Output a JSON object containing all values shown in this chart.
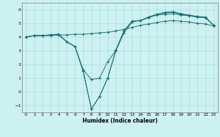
{
  "xlabel": "Humidex (Indice chaleur)",
  "background_color": "#cdf0f0",
  "line_color": "#1a7070",
  "grid_color": "#a8dede",
  "xlim": [
    -0.5,
    23.5
  ],
  "ylim": [
    -1.5,
    6.5
  ],
  "yticks": [
    -1,
    0,
    1,
    2,
    3,
    4,
    5,
    6
  ],
  "xticks": [
    0,
    1,
    2,
    3,
    4,
    5,
    6,
    7,
    8,
    9,
    10,
    11,
    12,
    13,
    14,
    15,
    16,
    17,
    18,
    19,
    20,
    21,
    22,
    23
  ],
  "line1_x": [
    0,
    1,
    2,
    3,
    4,
    5,
    6,
    7,
    8,
    9,
    10,
    11,
    12,
    13,
    14,
    15,
    16,
    17,
    18,
    19,
    20,
    21,
    22,
    23
  ],
  "line1_y": [
    4.0,
    4.1,
    4.1,
    4.1,
    4.15,
    4.15,
    4.2,
    4.2,
    4.25,
    4.3,
    4.35,
    4.45,
    4.55,
    4.7,
    4.85,
    4.95,
    5.05,
    5.15,
    5.2,
    5.15,
    5.1,
    5.0,
    4.95,
    4.8
  ],
  "line2_x": [
    0,
    1,
    2,
    3,
    4,
    5,
    6,
    7,
    8,
    9,
    10,
    11,
    12,
    13,
    14,
    15,
    16,
    17,
    18,
    19,
    20,
    21,
    22,
    23
  ],
  "line2_y": [
    4.0,
    4.1,
    4.1,
    4.15,
    4.15,
    3.65,
    3.3,
    1.6,
    0.9,
    1.0,
    2.2,
    3.0,
    4.3,
    5.1,
    5.2,
    5.4,
    5.6,
    5.65,
    5.7,
    5.6,
    5.55,
    5.5,
    5.45,
    4.85
  ],
  "line3_x": [
    0,
    1,
    2,
    3,
    4,
    5,
    6,
    7,
    8,
    9,
    10,
    11,
    12,
    13,
    14,
    15,
    16,
    17,
    18,
    19,
    20,
    21,
    22,
    23
  ],
  "line3_y": [
    4.0,
    4.1,
    4.1,
    4.15,
    4.2,
    3.65,
    3.3,
    1.5,
    -1.25,
    -0.35,
    1.0,
    3.0,
    4.45,
    5.15,
    5.2,
    5.45,
    5.65,
    5.75,
    5.8,
    5.65,
    5.55,
    5.45,
    5.4,
    4.85
  ],
  "line4_x": [
    0,
    1,
    2,
    3,
    4,
    5,
    6,
    7,
    8,
    9,
    10,
    11,
    12,
    13,
    14,
    15,
    16,
    17,
    18,
    19,
    20,
    21,
    22,
    23
  ],
  "line4_y": [
    4.0,
    4.1,
    4.1,
    4.15,
    4.2,
    3.65,
    3.3,
    1.5,
    -1.25,
    -0.35,
    1.0,
    3.05,
    4.45,
    5.15,
    5.2,
    5.45,
    5.65,
    5.8,
    5.85,
    5.7,
    5.6,
    5.5,
    5.4,
    4.85
  ]
}
